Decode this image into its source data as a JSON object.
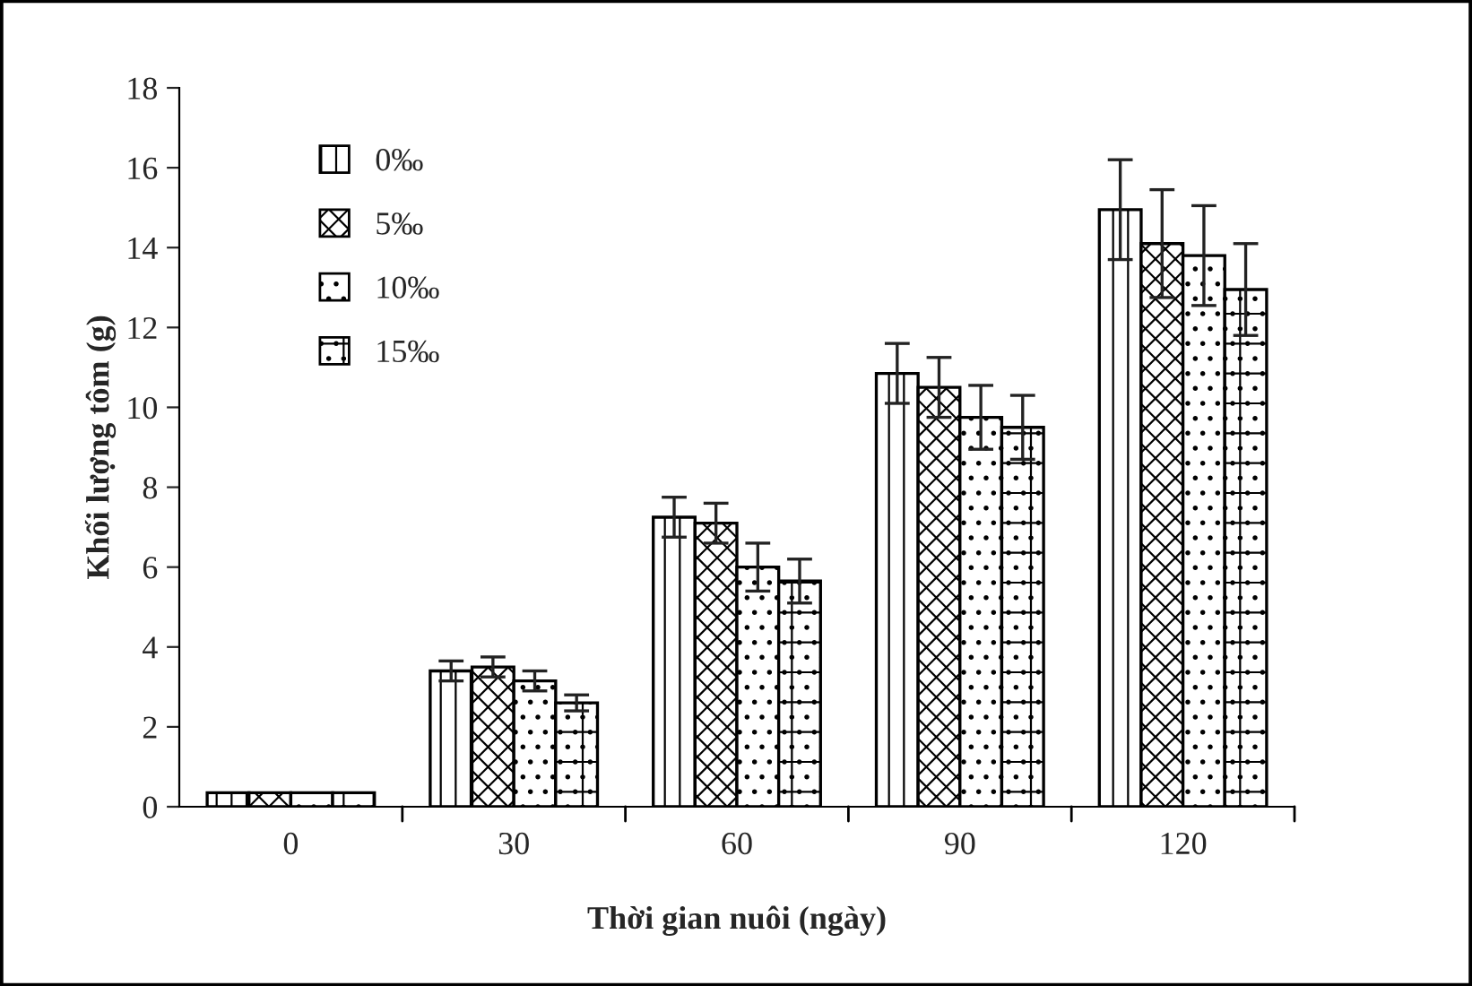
{
  "chart_data": {
    "type": "bar",
    "xlabel": "Thời gian nuôi (ngày)",
    "ylabel": "Khối lượng tôm (g)",
    "categories": [
      "0",
      "30",
      "60",
      "90",
      "120"
    ],
    "series": [
      {
        "name": "0‰",
        "color": "#000000",
        "values": [
          0.35,
          3.4,
          7.25,
          10.85,
          14.95
        ],
        "errors": [
          null,
          0.25,
          0.5,
          0.75,
          1.25
        ]
      },
      {
        "name": "5‰",
        "color": "#000000",
        "values": [
          0.35,
          3.5,
          7.1,
          10.5,
          14.1
        ],
        "errors": [
          null,
          0.25,
          0.5,
          0.75,
          1.35
        ]
      },
      {
        "name": "10‰",
        "color": "#000000",
        "values": [
          0.35,
          3.15,
          6.0,
          9.75,
          13.8
        ],
        "errors": [
          null,
          0.25,
          0.6,
          0.8,
          1.25
        ]
      },
      {
        "name": "15‰",
        "color": "#000000",
        "values": [
          0.35,
          2.6,
          5.65,
          9.5,
          12.95
        ],
        "errors": [
          null,
          0.2,
          0.55,
          0.8,
          1.15
        ]
      }
    ],
    "ylim": [
      0,
      18
    ],
    "yticks": [
      0,
      2,
      4,
      6,
      8,
      10,
      12,
      14,
      16,
      18
    ],
    "grid": false,
    "legend": "top left"
  }
}
